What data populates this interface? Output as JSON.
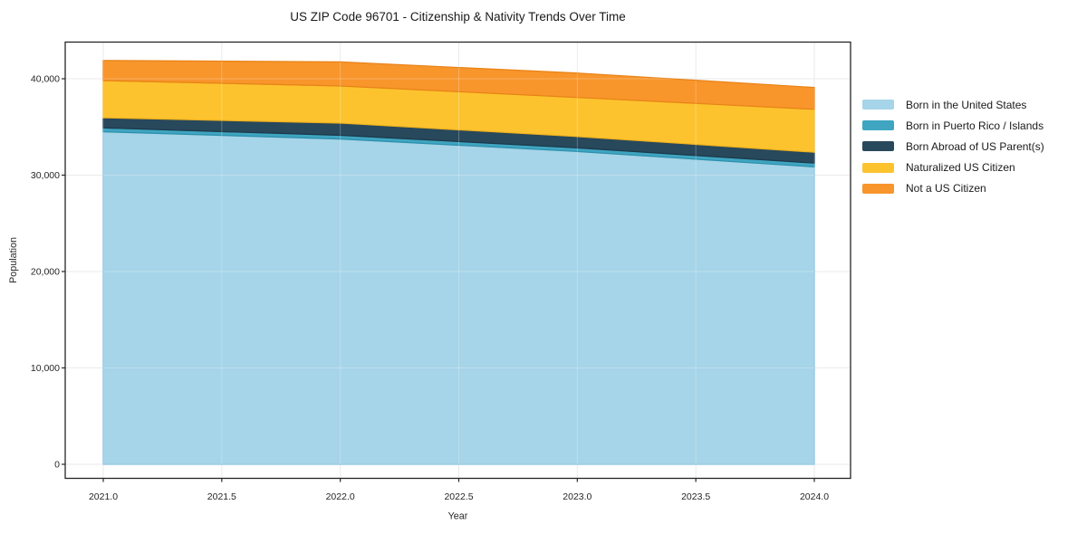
{
  "title": "US ZIP Code 96701 - Citizenship & Nativity Trends Over Time",
  "chart_data": {
    "type": "area",
    "stacked": true,
    "title": "US ZIP Code 96701 - Citizenship & Nativity Trends Over Time",
    "xlabel": "Year",
    "ylabel": "Population",
    "x": [
      2021,
      2022,
      2023,
      2024
    ],
    "series": [
      {
        "name": "Born in the United States",
        "color": "#a6d4e8",
        "edge_color": "#82bfdc",
        "values": [
          34500,
          33750,
          32450,
          30850
        ]
      },
      {
        "name": "Born in Puerto Rico / Islands",
        "color": "#3fa5c1",
        "edge_color": "#2d90ac",
        "values": [
          400,
          380,
          380,
          400
        ]
      },
      {
        "name": "Born Abroad of US Parent(s)",
        "color": "#28485c",
        "edge_color": "#1c3949",
        "values": [
          1050,
          1270,
          1170,
          1130
        ]
      },
      {
        "name": "Naturalized US Citizen",
        "color": "#fdc32f",
        "edge_color": "#eeb11d",
        "values": [
          3850,
          3850,
          4060,
          4450
        ]
      },
      {
        "name": "Not a US Citizen",
        "color": "#f8952b",
        "edge_color": "#e88317",
        "values": [
          2100,
          2500,
          2530,
          2270
        ]
      }
    ],
    "totals": [
      41900,
      41750,
      40590,
      39100
    ],
    "x_ticks": [
      "2021.0",
      "2021.5",
      "2022.0",
      "2022.5",
      "2023.0",
      "2023.5",
      "2024.0"
    ],
    "x_tick_values": [
      2021,
      2021.5,
      2022,
      2022.5,
      2023,
      2023.5,
      2024
    ],
    "y_ticks": [
      "0",
      "10,000",
      "20,000",
      "30,000",
      "40,000"
    ],
    "y_tick_values": [
      0,
      10000,
      20000,
      30000,
      40000
    ],
    "xlim": [
      2020.84,
      2024.15
    ],
    "ylim": [
      -1455,
      43800
    ],
    "grid": true,
    "legend_position": "right",
    "grid_color": "#eaeaea",
    "spine_color": "#262626",
    "background_color": "#ffffff"
  }
}
